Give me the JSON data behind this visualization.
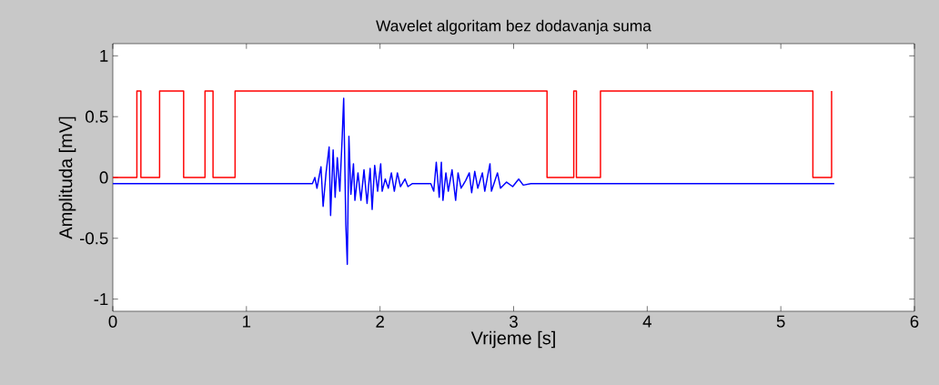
{
  "chart_data": {
    "type": "line",
    "title": "Wavelet algoritam bez dodavanja suma",
    "xlabel": "Vrijeme [s]",
    "ylabel": "Amplituda [mV]",
    "xlim": [
      0,
      6
    ],
    "ylim": [
      -1.1,
      1.1
    ],
    "xticks": [
      0,
      1,
      2,
      3,
      4,
      5,
      6
    ],
    "yticks": [
      -1,
      -0.5,
      0,
      0.5,
      1
    ],
    "grid": false,
    "series": [
      {
        "color": "#0000ff",
        "x": [
          0,
          1.403,
          1.494,
          1.512,
          1.528,
          1.558,
          1.574,
          1.596,
          1.619,
          1.63,
          1.649,
          1.664,
          1.68,
          1.699,
          1.717,
          1.728,
          1.744,
          1.755,
          1.767,
          1.782,
          1.801,
          1.812,
          1.835,
          1.857,
          1.88,
          1.903,
          1.926,
          1.941,
          1.96,
          1.982,
          2.005,
          2.016,
          2.039,
          2.062,
          2.085,
          2.107,
          2.13,
          2.153,
          2.187,
          2.209,
          2.243,
          2.38,
          2.402,
          2.421,
          2.443,
          2.459,
          2.471,
          2.493,
          2.511,
          2.539,
          2.566,
          2.584,
          2.607,
          2.641,
          2.668,
          2.686,
          2.709,
          2.732,
          2.766,
          2.784,
          2.823,
          2.834,
          2.879,
          2.902,
          2.947,
          2.993,
          3.038,
          3.072,
          3.129,
          5.4
        ],
        "values": [
          -0.05,
          -0.05,
          -0.05,
          0.0,
          -0.088,
          0.088,
          -0.238,
          0.038,
          0.251,
          -0.313,
          0.226,
          -0.163,
          0.163,
          -0.113,
          0.338,
          0.652,
          -0.388,
          -0.714,
          0.338,
          -0.138,
          0.113,
          -0.188,
          0.038,
          -0.188,
          0.063,
          -0.213,
          0.075,
          -0.263,
          0.1,
          -0.113,
          0.113,
          -0.113,
          -0.013,
          -0.088,
          0.038,
          -0.113,
          0.038,
          -0.075,
          -0.013,
          -0.075,
          -0.05,
          -0.05,
          -0.113,
          0.125,
          -0.163,
          0.125,
          -0.188,
          0.038,
          -0.113,
          0.063,
          -0.188,
          0.038,
          -0.088,
          -0.025,
          0.038,
          -0.125,
          0.05,
          -0.088,
          0.038,
          -0.113,
          0.113,
          -0.113,
          0.038,
          -0.088,
          -0.038,
          -0.075,
          -0.013,
          -0.063,
          -0.05,
          -0.05
        ]
      },
      {
        "color": "#ff0000",
        "x": [
          0,
          0.18,
          0.18,
          0.21,
          0.21,
          0.35,
          0.35,
          0.53,
          0.53,
          0.69,
          0.69,
          0.75,
          0.75,
          0.915,
          0.915,
          3.25,
          3.25,
          3.45,
          3.45,
          3.47,
          3.47,
          3.65,
          3.65,
          5.24,
          5.24,
          5.38,
          5.38
        ],
        "values": [
          0,
          0,
          0.71,
          0.71,
          0,
          0,
          0.71,
          0.71,
          0,
          0,
          0.71,
          0.71,
          0,
          0,
          0.71,
          0.71,
          0,
          0,
          0.71,
          0.71,
          0,
          0,
          0.71,
          0.71,
          0,
          0,
          0.71
        ]
      }
    ]
  }
}
